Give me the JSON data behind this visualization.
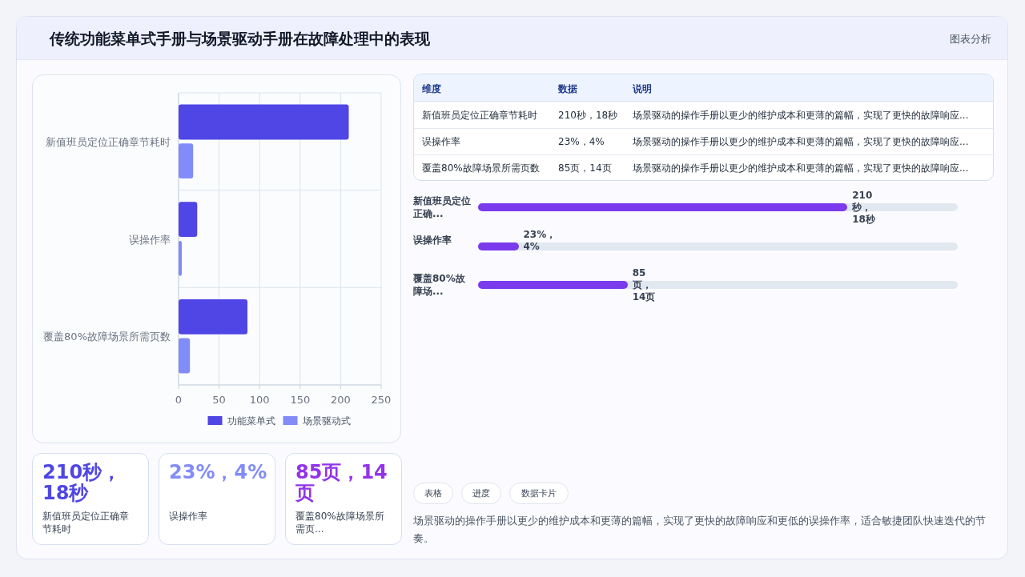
{
  "chart_data": [
    {
      "type": "bar",
      "title": "传统功能菜单式手册与场景驱动手册在故障处理中的表现",
      "annotations": [
        "图表分析"
      ],
      "orientation": "horizontal",
      "categories": [
        "新值班员定位正确章节耗时",
        "误操作率",
        "覆盖80%故障场景所需页数"
      ],
      "series": [
        {
          "name": "功能菜单式",
          "color": "#4f46e5",
          "values": [
            210,
            23,
            85
          ]
        },
        {
          "name": "场景驱动式",
          "color": "#818cf8",
          "values": [
            18,
            4,
            14
          ]
        }
      ],
      "xlim": [
        0,
        250
      ],
      "xticks": [
        0,
        50,
        100,
        150,
        200,
        250
      ],
      "grid": true,
      "legend": "bottom"
    },
    {
      "type": "other",
      "annotations": [
        "维度",
        "数据",
        "说明",
        "新值班员定位正确章节耗时",
        "210秒，18秒",
        "场景驱动的操作手册以更少的维护成本和更薄的篇幅，实现了更快的故障响应...",
        "误操作率",
        "23%，4%",
        "场景驱动的操作手册以更少的维护成本和更薄的篇幅，实现了更快的故障响应...",
        "覆盖80%故障场景所需页数",
        "85页，14页",
        "场景驱动的操作手册以更少的维护成本和更薄的篇幅，实现了更快的故障响应..."
      ]
    },
    {
      "type": "bar",
      "orientation": "horizontal",
      "categories": [
        "新值班员定位正确...",
        "误操作率",
        "覆盖80%故障场..."
      ],
      "values": [
        210,
        23,
        85
      ],
      "value_labels": [
        "210秒，18秒",
        "23%，4%",
        "85页，14页"
      ],
      "color": "#7c3aed"
    },
    {
      "type": "other",
      "annotations": [
        "210秒，18秒",
        "新值班员定位正确章节耗时",
        "23%，4%",
        "误操作率",
        "85页，14页",
        "覆盖80%故障场景所需页..."
      ],
      "colors": [
        "#4f46e5",
        "#818cf8",
        "#9333ea"
      ]
    },
    {
      "type": "other",
      "annotations": [
        "表格",
        "进度",
        "数据卡片",
        "场景驱动的操作手册以更少的维护成本和更薄的篇幅，实现了更快的故障响应和更低的误操作率，适合敏捷团队快速迭代的节奏。"
      ]
    }
  ]
}
